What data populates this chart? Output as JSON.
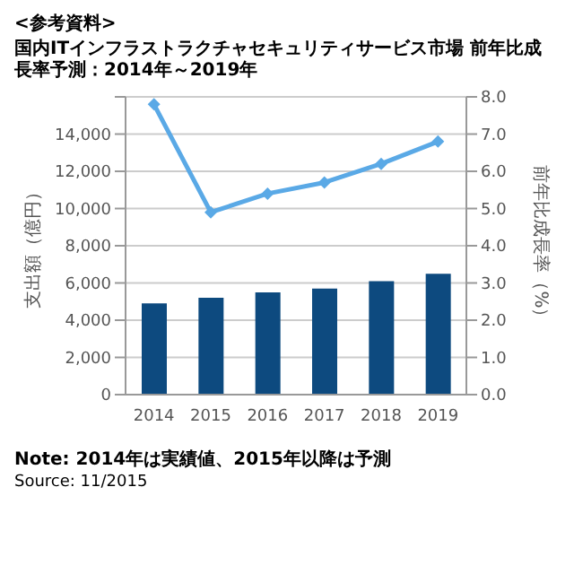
{
  "chart_data": {
    "type": "bar",
    "subtitle": "<参考資料>",
    "title": "国内ITインフラストラクチャセキュリティサービス市場 前年比成長率予測：2014年～2019年",
    "ylabel": "支出額（億円）",
    "y2label": "前年比成長率（%）",
    "categories": [
      "2014",
      "2015",
      "2016",
      "2017",
      "2018",
      "2019"
    ],
    "series": [
      {
        "color": "#0d4a7f",
        "values": [
          4900,
          5200,
          5500,
          5700,
          6100,
          6500
        ]
      },
      {
        "type": "line",
        "axis": "y2",
        "color": "#5aa9e6",
        "marker": "diamond",
        "values": [
          7.8,
          4.9,
          5.4,
          5.7,
          6.2,
          6.8
        ]
      }
    ],
    "ylim": [
      0,
      16000
    ],
    "yticks": [
      0,
      {
        "value": 2000,
        "label": "2,000"
      },
      {
        "value": 4000,
        "label": "4,000"
      },
      {
        "value": 6000,
        "label": "6,000"
      },
      {
        "value": 8000,
        "label": "8,000"
      },
      {
        "value": 10000,
        "label": "10,000"
      },
      {
        "value": 12000,
        "label": "12,000"
      },
      {
        "value": 14000,
        "label": "14,000"
      },
      {
        "value": 16000,
        "label": null
      }
    ],
    "y2lim": [
      0,
      8
    ],
    "y2ticks": [
      {
        "value": 0,
        "label": "0.0"
      },
      {
        "value": 1,
        "label": "1.0"
      },
      {
        "value": 2,
        "label": "2.0"
      },
      {
        "value": 3,
        "label": "3.0"
      },
      {
        "value": 4,
        "label": "4.0"
      },
      {
        "value": 5,
        "label": "5.0"
      },
      {
        "value": 6,
        "label": "6.0"
      },
      {
        "value": 7,
        "label": "7.0"
      },
      {
        "value": 8,
        "label": "8.0"
      }
    ],
    "grid": "y",
    "legend": false,
    "annotations": [
      "Note: 2014年は実績値、2015年以降は予測",
      "Source: 11/2015"
    ]
  }
}
